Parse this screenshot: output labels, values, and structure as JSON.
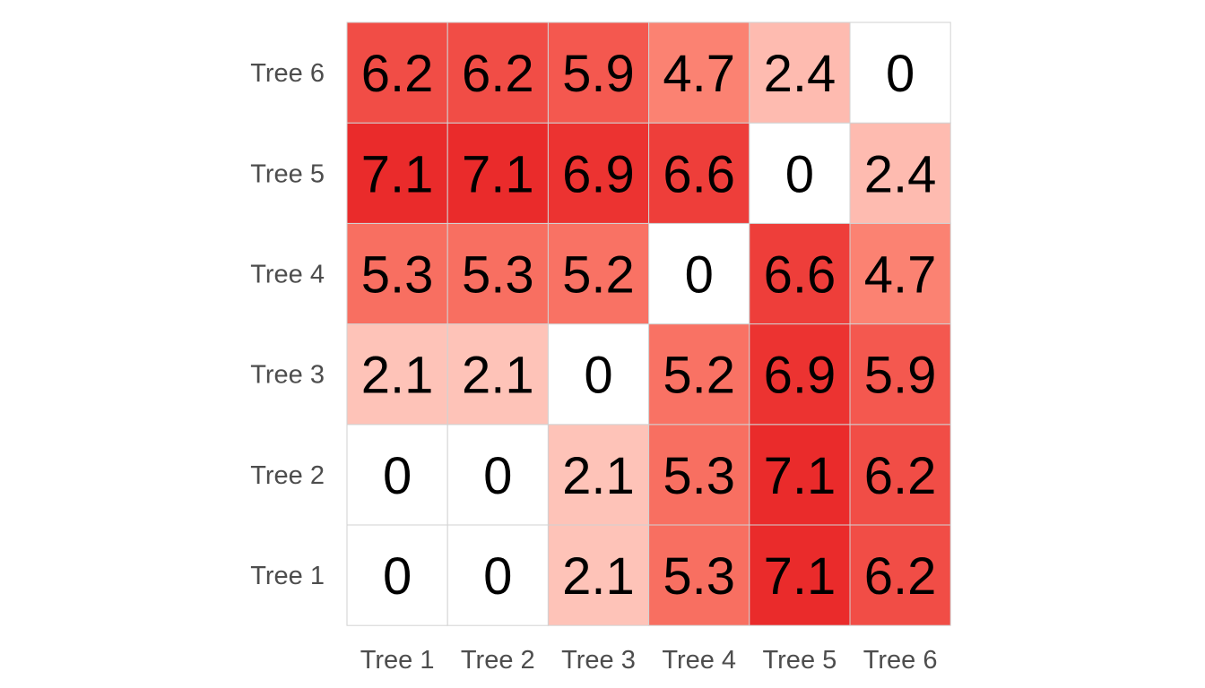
{
  "chart_data": {
    "type": "heatmap",
    "title": "",
    "xlabel": "",
    "ylabel": "",
    "x_categories": [
      "Tree 1",
      "Tree 2",
      "Tree 3",
      "Tree 4",
      "Tree 5",
      "Tree 6"
    ],
    "y_categories": [
      "Tree 1",
      "Tree 2",
      "Tree 3",
      "Tree 4",
      "Tree 5",
      "Tree 6"
    ],
    "values": [
      [
        0,
        0,
        2.1,
        5.3,
        7.1,
        6.2
      ],
      [
        0,
        0,
        2.1,
        5.3,
        7.1,
        6.2
      ],
      [
        2.1,
        2.1,
        0,
        5.2,
        6.9,
        5.9
      ],
      [
        5.3,
        5.3,
        5.2,
        0,
        6.6,
        4.7
      ],
      [
        7.1,
        7.1,
        6.9,
        6.6,
        0,
        2.4
      ],
      [
        6.2,
        6.2,
        5.9,
        4.7,
        2.4,
        0
      ]
    ],
    "color_scale": {
      "low": "#ffffff",
      "light": "#fec4b9",
      "mid": "#fb7b6b",
      "high": "#ea2b2b",
      "max_value": 7.1
    },
    "grid": true,
    "legend": "none"
  }
}
